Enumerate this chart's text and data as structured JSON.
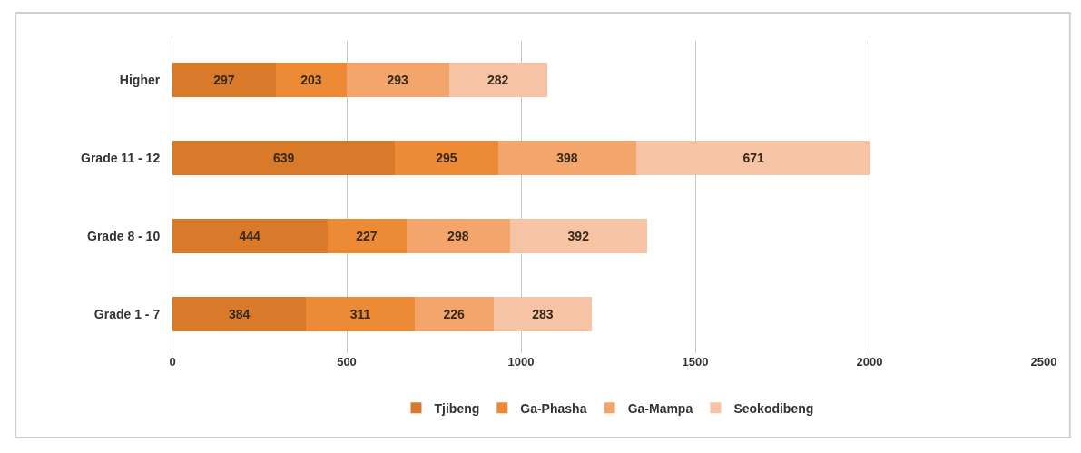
{
  "chart_data": {
    "type": "bar",
    "orientation": "horizontal",
    "stacked": true,
    "categories": [
      "Higher",
      "Grade 11 - 12",
      "Grade 8 - 10",
      "Grade 1 - 7"
    ],
    "series": [
      {
        "name": "Tjibeng",
        "color": "#d9792a",
        "values": [
          297,
          639,
          444,
          384
        ]
      },
      {
        "name": "Ga-Phasha",
        "color": "#ed8a35",
        "values": [
          203,
          295,
          227,
          311
        ]
      },
      {
        "name": "Ga-Mampa",
        "color": "#f4a56c",
        "values": [
          293,
          398,
          298,
          226
        ]
      },
      {
        "name": "Seokodibeng",
        "color": "#f7c3a5",
        "values": [
          282,
          671,
          392,
          283
        ]
      }
    ],
    "xlim": [
      0,
      2500
    ],
    "xticks": [
      0,
      500,
      1000,
      1500,
      2000,
      2500
    ],
    "data_labels": true,
    "grid": "x",
    "legend": "bottom"
  }
}
